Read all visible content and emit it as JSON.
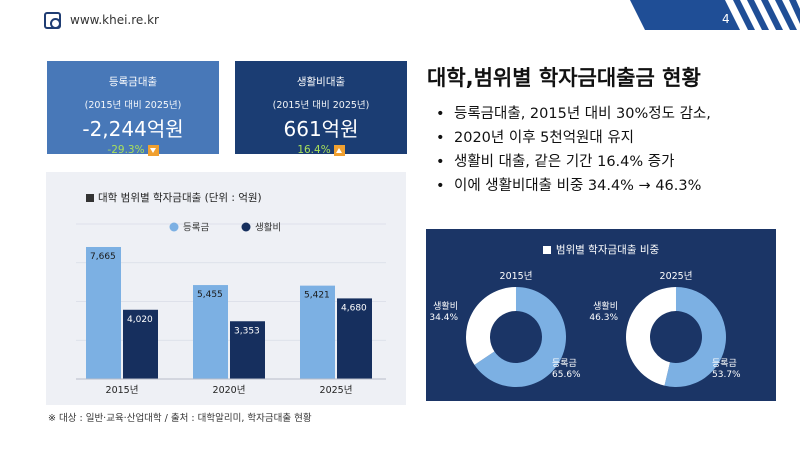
{
  "header": {
    "site_url": "www.khei.re.kr",
    "page_number": "4",
    "logo_icon": "khei-logo-icon",
    "accent_color": "#1f4e96"
  },
  "kpis": [
    {
      "title": "등록금대출",
      "subtitle": "(2015년 대비 2025년)",
      "value": "-2,244억원",
      "change": "-29.3%",
      "direction_icon": "down-arrow-icon",
      "bg_color": "#4878b8"
    },
    {
      "title": "생활비대출",
      "subtitle": "(2015년 대비 2025년)",
      "value": "661억원",
      "change": "16.4%",
      "direction_icon": "up-arrow-icon",
      "bg_color": "#1b3d73"
    }
  ],
  "main": {
    "title": "대학,범위별 학자금대출금 현황",
    "bullets": [
      "등록금대출, 2015년 대비 30%정도 감소,",
      "2020년 이후 5천억원대 유지",
      "생활비 대출, 같은 기간 16.4% 증가",
      "이에 생활비대출 비중 34.4% → 46.3%"
    ]
  },
  "chart_data": [
    {
      "type": "bar",
      "title": "대학 범위별 학자금대출 (단위 : 억원)",
      "categories": [
        "2015년",
        "2020년",
        "2025년"
      ],
      "series": [
        {
          "name": "등록금",
          "values": [
            7665,
            5455,
            5421
          ],
          "color": "#7cb0e3"
        },
        {
          "name": "생활비",
          "values": [
            4020,
            3353,
            4680
          ],
          "color": "#162f5e"
        }
      ],
      "value_labels": {
        "등록금": [
          "7,665",
          "5,455",
          "5,421"
        ],
        "생활비": [
          "4,020",
          "3,353",
          "4,680"
        ]
      },
      "ylim": [
        0,
        9000
      ],
      "grid": true,
      "legend": "top-center"
    },
    {
      "type": "pie",
      "title": "범위별 학자금대출 비중",
      "donuts": [
        {
          "label": "2015년",
          "slices": [
            {
              "name": "등록금",
              "value": 65.6,
              "label": "65.6%",
              "color": "#7cb0e3"
            },
            {
              "name": "생활비",
              "value": 34.4,
              "label": "34.4%",
              "color": "#ffffff"
            }
          ]
        },
        {
          "label": "2025년",
          "slices": [
            {
              "name": "등록금",
              "value": 53.7,
              "label": "53.7%",
              "color": "#7cb0e3"
            },
            {
              "name": "생활비",
              "value": 46.3,
              "label": "46.3%",
              "color": "#ffffff"
            }
          ]
        }
      ]
    }
  ],
  "footnote": "※ 대상 : 일반·교육·산업대학    / 출처 : 대학알리미, 학자금대출 현황"
}
